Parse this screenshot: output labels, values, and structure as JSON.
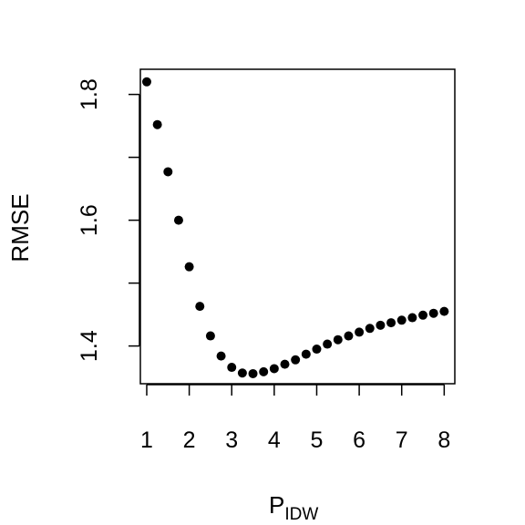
{
  "chart_data": {
    "type": "scatter",
    "title": "",
    "xlabel": "P",
    "xlabel_subscript": "IDW",
    "ylabel": "RMSE",
    "xlim": [
      0.85,
      8.25
    ],
    "ylim": [
      1.34,
      1.84
    ],
    "x_ticks": [
      1,
      2,
      3,
      4,
      5,
      6,
      7,
      8
    ],
    "x_tick_labels": [
      "1",
      "2",
      "3",
      "4",
      "5",
      "6",
      "7",
      "8"
    ],
    "y_ticks": [
      1.4,
      1.5,
      1.6,
      1.7,
      1.8
    ],
    "y_tick_labels": [
      "1.4",
      "",
      "1.6",
      "",
      "1.8"
    ],
    "grid": false,
    "legend": "none",
    "point_color": "#000000",
    "series": [
      {
        "x": [
          1.0,
          1.25,
          1.5,
          1.75,
          2.0,
          2.25,
          2.5,
          2.75,
          3.0,
          3.25,
          3.5,
          3.75,
          4.0,
          4.25,
          4.5,
          4.75,
          5.0,
          5.25,
          5.5,
          5.75,
          6.0,
          6.25,
          6.5,
          6.75,
          7.0,
          7.25,
          7.5,
          7.75,
          8.0
        ],
        "y": [
          1.82,
          1.752,
          1.677,
          1.6,
          1.526,
          1.463,
          1.416,
          1.384,
          1.366,
          1.357,
          1.356,
          1.359,
          1.364,
          1.371,
          1.378,
          1.387,
          1.395,
          1.403,
          1.41,
          1.416,
          1.422,
          1.428,
          1.433,
          1.437,
          1.441,
          1.445,
          1.449,
          1.452,
          1.455
        ]
      }
    ]
  }
}
